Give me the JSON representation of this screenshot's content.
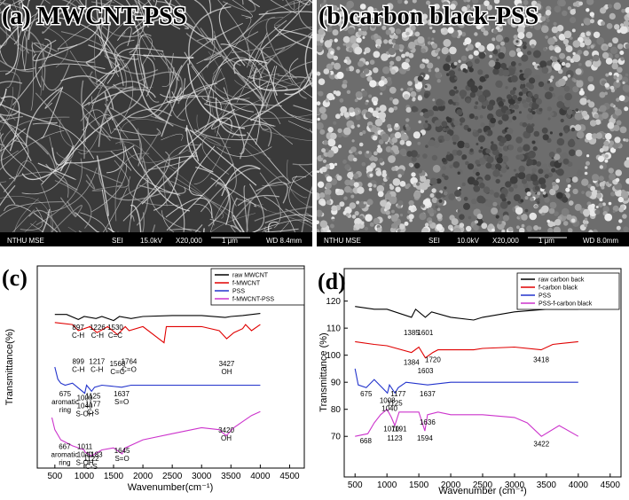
{
  "panels": [
    {
      "label": "(a) MWCNT-PSS",
      "footer": [
        "NTHU MSE",
        "SEI",
        "15.0kV",
        "X20,000",
        "1 μm",
        "WD 8.4mm"
      ]
    },
    {
      "label": "(b)carbon black-PSS",
      "footer": [
        "NTHU MSE",
        "SEI",
        "10.0kV",
        "X20,000",
        "1 μm",
        "WD 8.0mm"
      ]
    }
  ],
  "chart_data": [
    {
      "type": "line",
      "panel_label": "(c)",
      "xlabel": "Wavenumber(cm⁻¹)",
      "ylabel": "Transmittance(%)",
      "xlim": [
        200,
        4750
      ],
      "xticks": [
        500,
        1000,
        1500,
        2000,
        2500,
        3000,
        3500,
        4000,
        4500
      ],
      "ylim": [
        0,
        100
      ],
      "series": [
        {
          "name": "raw MWCNT",
          "color": "#000000",
          "x": [
            500,
            700,
            900,
            1000,
            1200,
            1300,
            1500,
            1600,
            1800,
            2000,
            2500,
            3000,
            3400,
            3500,
            3700,
            4000
          ],
          "values": [
            76,
            76,
            73.5,
            75,
            74,
            75,
            73,
            75,
            74,
            75,
            75.5,
            75.5,
            74.5,
            75,
            75.5,
            76.5
          ]
        },
        {
          "name": "f-MWCNT",
          "color": "#e00000",
          "x": [
            500,
            800,
            900,
            1100,
            1217,
            1400,
            1568,
            1700,
            1764,
            2000,
            2360,
            2400,
            2500,
            3000,
            3300,
            3427,
            3550,
            3700,
            3750,
            3850,
            4000
          ],
          "values": [
            72,
            71,
            68,
            70,
            67,
            70,
            66,
            70,
            68,
            70,
            62,
            70,
            70,
            70,
            68,
            64,
            67,
            69,
            71,
            68,
            71
          ]
        },
        {
          "name": "PSS",
          "color": "#2233cc",
          "x": [
            500,
            550,
            600,
            675,
            800,
            1009,
            1040,
            1125,
            1177,
            1300,
            1637,
            1800,
            2500,
            3000,
            4000
          ],
          "values": [
            50,
            44,
            42,
            41,
            42,
            37,
            41,
            38,
            40,
            41,
            40,
            41,
            41,
            41,
            41
          ]
        },
        {
          "name": "f-MWCNT-PSS",
          "color": "#cc33cc",
          "x": [
            450,
            500,
            600,
            667,
            800,
            1000,
            1011,
            1122,
            1183,
            1300,
            1500,
            1645,
            1700,
            2000,
            2500,
            3000,
            3300,
            3420,
            3550,
            3700,
            3850,
            4000
          ],
          "values": [
            25,
            19,
            14,
            13,
            11,
            9,
            8,
            6,
            7,
            9,
            10,
            7,
            10,
            14,
            17,
            20,
            19,
            16,
            20,
            23,
            26,
            28
          ]
        }
      ],
      "annotations": [
        {
          "x": 897,
          "y": 72,
          "lines": [
            "897",
            "C-H"
          ]
        },
        {
          "x": 1226,
          "y": 72,
          "lines": [
            "1226",
            "C-H"
          ]
        },
        {
          "x": 1530,
          "y": 72,
          "lines": [
            "1530",
            "C=C"
          ]
        },
        {
          "x": 899,
          "y": 55,
          "lines": [
            "899",
            "C-H"
          ]
        },
        {
          "x": 1217,
          "y": 55,
          "lines": [
            "1217",
            "C-H"
          ]
        },
        {
          "x": 1568,
          "y": 54,
          "lines": [
            "1568",
            "C=C"
          ]
        },
        {
          "x": 1764,
          "y": 55,
          "lines": [
            "1764",
            "C=O"
          ]
        },
        {
          "x": 3427,
          "y": 54,
          "lines": [
            "3427",
            "OH"
          ]
        },
        {
          "x": 675,
          "y": 39,
          "lines": [
            "675",
            "aromatic",
            "ring"
          ]
        },
        {
          "x": 1009,
          "y": 37,
          "lines": [
            "1009",
            "1040",
            "S-OH"
          ]
        },
        {
          "x": 1150,
          "y": 38,
          "lines": [
            "1125",
            "1177",
            "C-S"
          ]
        },
        {
          "x": 1637,
          "y": 39,
          "lines": [
            "1637",
            "S=O"
          ]
        },
        {
          "x": 667,
          "y": 13,
          "lines": [
            "667",
            "aromatic",
            "ring"
          ]
        },
        {
          "x": 1011,
          "y": 13,
          "lines": [
            "1011",
            "1040",
            "S-OH"
          ]
        },
        {
          "x": 1122,
          "y": 7,
          "lines": [
            "1122",
            "C-S"
          ]
        },
        {
          "x": 1183,
          "y": 9,
          "lines": [
            "1183"
          ]
        },
        {
          "x": 1645,
          "y": 11,
          "lines": [
            "1645",
            "S=O"
          ]
        },
        {
          "x": 3420,
          "y": 21,
          "lines": [
            "3420",
            "OH"
          ]
        }
      ]
    },
    {
      "type": "line",
      "panel_label": "(d)",
      "xlabel": "Wavenumber (cm⁻¹)",
      "ylabel": "Transmittance (%)",
      "xlim": [
        330,
        4670
      ],
      "xticks": [
        500,
        1000,
        1500,
        2000,
        2500,
        3000,
        3500,
        4000,
        4500
      ],
      "ylim": [
        55,
        132
      ],
      "yticks": [
        70,
        80,
        90,
        100,
        110,
        120
      ],
      "series": [
        {
          "name": "raw carbon back",
          "color": "#000000",
          "x": [
            500,
            800,
            1000,
            1385,
            1450,
            1601,
            1700,
            2000,
            2360,
            2500,
            3000,
            3500,
            4000
          ],
          "values": [
            118,
            117,
            117,
            114,
            117,
            114,
            116,
            114,
            113,
            114,
            116,
            117,
            117
          ]
        },
        {
          "name": "f-carbon black",
          "color": "#e00000",
          "x": [
            500,
            800,
            1000,
            1384,
            1500,
            1603,
            1720,
            1800,
            2360,
            2500,
            3000,
            3418,
            3600,
            4000
          ],
          "values": [
            105,
            104,
            103.5,
            101,
            103,
            99,
            101,
            102,
            102,
            102.5,
            103,
            102,
            104,
            105
          ]
        },
        {
          "name": "PSS",
          "color": "#2233cc",
          "x": [
            500,
            550,
            675,
            800,
            1008,
            1040,
            1125,
            1177,
            1300,
            1637,
            2000,
            3000,
            4000
          ],
          "values": [
            95,
            89,
            88,
            91,
            86,
            89,
            86,
            88,
            90,
            89,
            90,
            90,
            90
          ]
        },
        {
          "name": "PSS-f-carbon black",
          "color": "#cc33cc",
          "x": [
            500,
            700,
            800,
            900,
            1000,
            1070,
            1123,
            1191,
            1300,
            1500,
            1594,
            1636,
            1800,
            2000,
            2500,
            3000,
            3200,
            3422,
            3700,
            4000
          ],
          "values": [
            70,
            71,
            75,
            78,
            80,
            77,
            74,
            79,
            79,
            79,
            72,
            78,
            79,
            78,
            78,
            77,
            75,
            70,
            74,
            70
          ]
        }
      ],
      "annotations": [
        {
          "x": 1385,
          "y": 110,
          "lines": [
            "1385"
          ]
        },
        {
          "x": 1601,
          "y": 110,
          "lines": [
            "1601"
          ]
        },
        {
          "x": 1384,
          "y": 99,
          "lines": [
            "1384"
          ]
        },
        {
          "x": 1603,
          "y": 96,
          "lines": [
            "1603"
          ]
        },
        {
          "x": 1720,
          "y": 100,
          "lines": [
            "1720"
          ]
        },
        {
          "x": 3418,
          "y": 100,
          "lines": [
            "3418"
          ]
        },
        {
          "x": 675,
          "y": 87.5,
          "lines": [
            "675"
          ]
        },
        {
          "x": 1008,
          "y": 85,
          "lines": [
            "1008"
          ]
        },
        {
          "x": 1040,
          "y": 82,
          "lines": [
            "1040"
          ]
        },
        {
          "x": 1125,
          "y": 84,
          "lines": [
            "1125"
          ]
        },
        {
          "x": 1177,
          "y": 87.5,
          "lines": [
            "1177"
          ]
        },
        {
          "x": 1637,
          "y": 87.5,
          "lines": [
            "1637"
          ]
        },
        {
          "x": 668,
          "y": 70,
          "lines": [
            "668"
          ]
        },
        {
          "x": 1070,
          "y": 74.5,
          "lines": [
            "1070"
          ]
        },
        {
          "x": 1123,
          "y": 71,
          "lines": [
            "1123"
          ]
        },
        {
          "x": 1191,
          "y": 74.5,
          "lines": [
            "1191"
          ]
        },
        {
          "x": 1594,
          "y": 71,
          "lines": [
            "1594"
          ]
        },
        {
          "x": 1636,
          "y": 77,
          "lines": [
            "1636"
          ]
        },
        {
          "x": 3422,
          "y": 69,
          "lines": [
            "3422"
          ]
        }
      ]
    }
  ]
}
